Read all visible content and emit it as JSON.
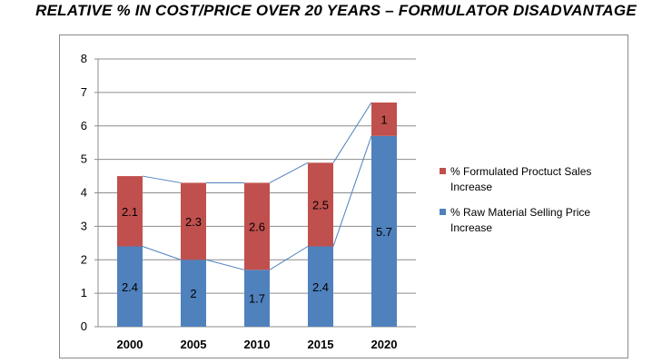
{
  "chart_data": {
    "type": "bar",
    "stacked": true,
    "title": "RELATIVE % IN COST/PRICE OVER 20 YEARS – FORMULATOR DISADVANTAGE",
    "categories": [
      "2000",
      "2005",
      "2010",
      "2015",
      "2020"
    ],
    "series": [
      {
        "name": "% Raw Material Selling Price Increase",
        "values": [
          2.4,
          2,
          1.7,
          2.4,
          5.7
        ],
        "color": "#4f81bd"
      },
      {
        "name": "% Formulated Proctuct Sales Increase",
        "values": [
          2.1,
          2.3,
          2.6,
          2.5,
          1
        ],
        "color": "#c0504d"
      }
    ],
    "data_labels": {
      "bottom": [
        "2.4",
        "2",
        "1.7",
        "2.4",
        "5.7"
      ],
      "top": [
        "2.1",
        "2.3",
        "2.6",
        "2.5",
        "1"
      ]
    },
    "ylim": [
      0,
      8
    ],
    "yticks": [
      "0",
      "1",
      "2",
      "3",
      "4",
      "5",
      "6",
      "7",
      "8"
    ],
    "grid": true,
    "series_lines": true,
    "legend_position": "right",
    "xlabel": "",
    "ylabel": ""
  }
}
